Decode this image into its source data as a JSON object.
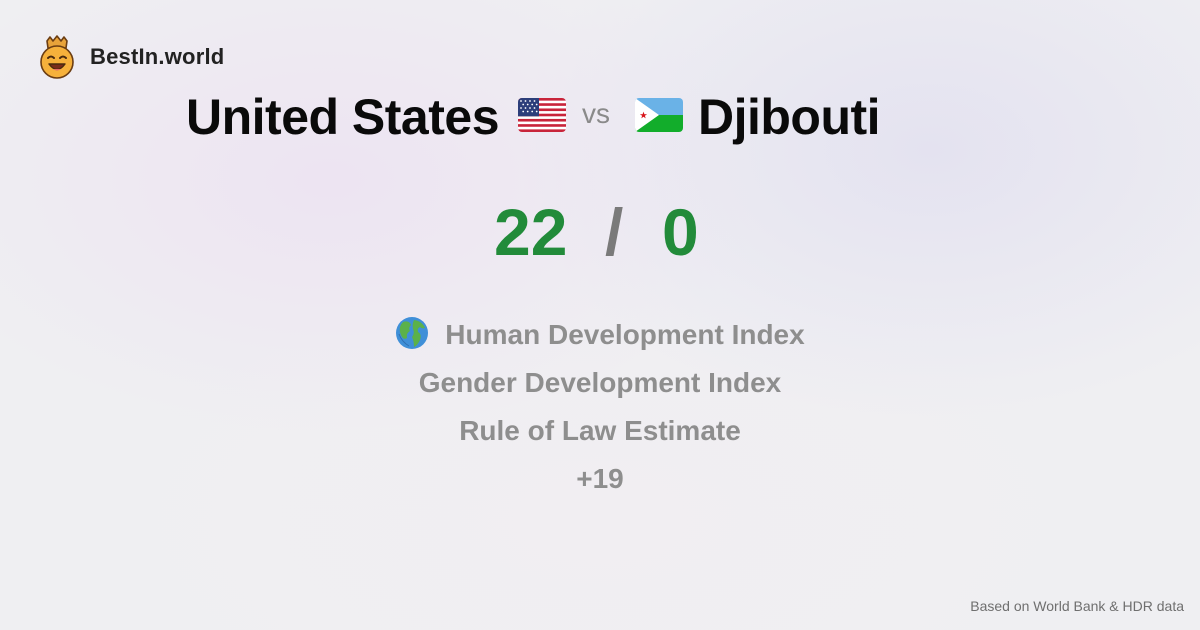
{
  "brand": {
    "name": "BestIn.world",
    "logo_icon": "crown-smiley-icon"
  },
  "comparison": {
    "country_a": "United States",
    "flag_a_icon": "us-flag-icon",
    "vs_label": "vs",
    "country_b": "Djibouti",
    "flag_b_icon": "djibouti-flag-icon"
  },
  "score": {
    "a": "22",
    "separator": "/",
    "b": "0",
    "color": "#228b3a"
  },
  "metrics": {
    "icon": "globe-icon",
    "items": [
      "Human Development Index",
      "Gender Development Index",
      "Rule of Law Estimate",
      "+19"
    ]
  },
  "footer": {
    "source": "Based on World Bank & HDR data"
  }
}
